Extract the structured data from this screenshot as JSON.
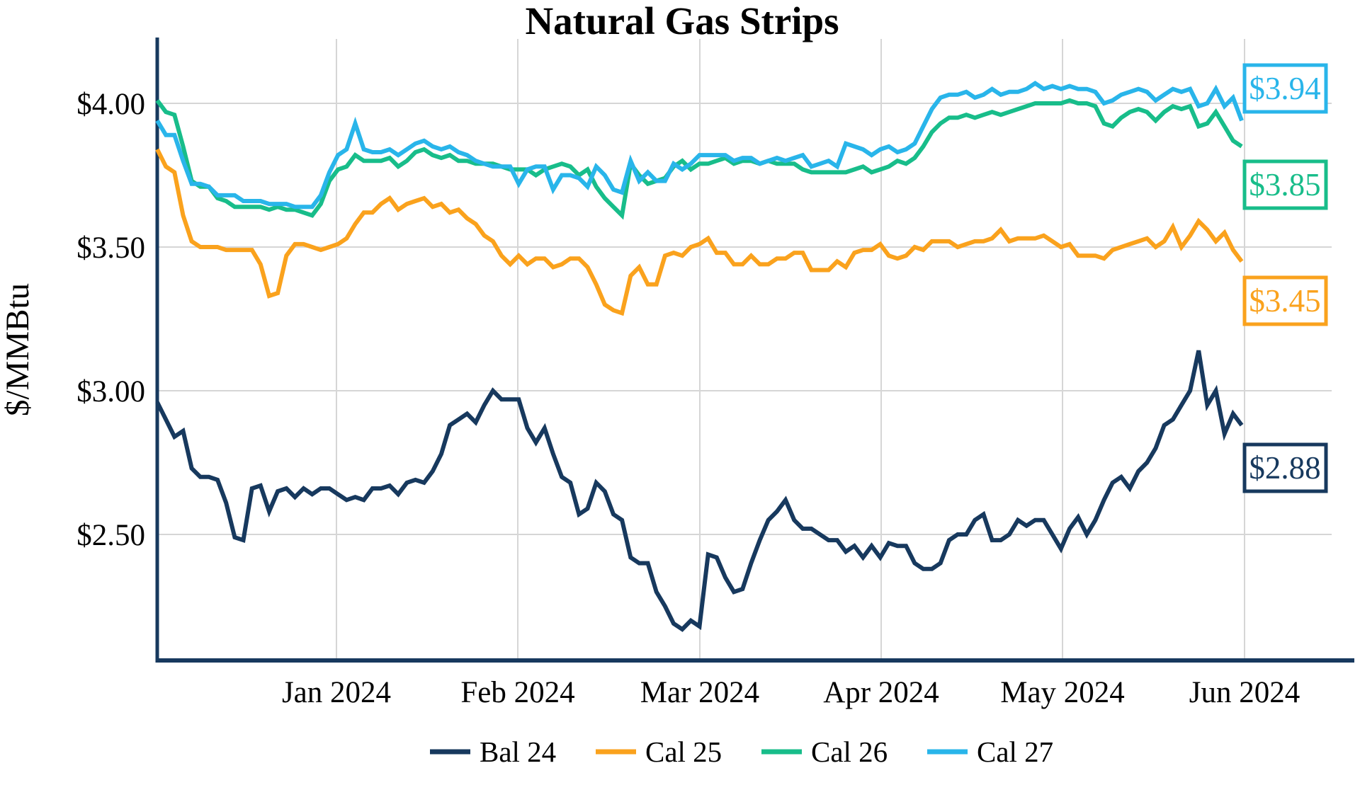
{
  "title": "Natural Gas Strips",
  "y_axis": {
    "label": "$/MMBtu",
    "ticks": [
      {
        "value": 4.0,
        "label": "$4.00"
      },
      {
        "value": 3.5,
        "label": "$3.50"
      },
      {
        "value": 3.0,
        "label": "$3.00"
      },
      {
        "value": 2.5,
        "label": "$2.50"
      }
    ]
  },
  "x_axis": {
    "ticks": [
      {
        "label": "Jan 2024",
        "pos": 20.82
      },
      {
        "label": "Feb 2024",
        "pos": 41.89
      },
      {
        "label": "Mar 2024",
        "pos": 63.04
      },
      {
        "label": "Apr 2024",
        "pos": 84.11
      },
      {
        "label": "May 2024",
        "pos": 105.18
      },
      {
        "label": "Jun 2024",
        "pos": 126.33
      }
    ]
  },
  "colors": {
    "bal24": "#17395E",
    "cal25": "#FAA21D",
    "cal26": "#18BD8A",
    "cal27": "#29B5EA",
    "grid": "#D6D6D6",
    "axis": "#17395E"
  },
  "chart_data": {
    "type": "line",
    "title": "Natural Gas Strips",
    "xlabel": "",
    "ylabel": "$/MMBtu",
    "ylim": [
      2.06,
      4.22
    ],
    "grid": true,
    "legend_position": "bottom",
    "x_range": "Dec 2023 through early Jun 2024, daily",
    "series": [
      {
        "name": "Bal 24",
        "color": "#17395E",
        "end_label": "$2.88",
        "values": [
          2.96,
          2.9,
          2.84,
          2.86,
          2.73,
          2.7,
          2.7,
          2.69,
          2.61,
          2.49,
          2.48,
          2.66,
          2.67,
          2.58,
          2.65,
          2.66,
          2.63,
          2.66,
          2.64,
          2.66,
          2.66,
          2.64,
          2.62,
          2.63,
          2.62,
          2.66,
          2.66,
          2.67,
          2.64,
          2.68,
          2.69,
          2.68,
          2.72,
          2.78,
          2.88,
          2.9,
          2.92,
          2.89,
          2.95,
          3.0,
          2.97,
          2.97,
          2.97,
          2.87,
          2.82,
          2.87,
          2.78,
          2.7,
          2.68,
          2.57,
          2.59,
          2.68,
          2.65,
          2.57,
          2.55,
          2.42,
          2.4,
          2.4,
          2.3,
          2.25,
          2.19,
          2.17,
          2.2,
          2.18,
          2.43,
          2.42,
          2.35,
          2.3,
          2.31,
          2.4,
          2.48,
          2.55,
          2.58,
          2.62,
          2.55,
          2.52,
          2.52,
          2.5,
          2.48,
          2.48,
          2.44,
          2.46,
          2.42,
          2.46,
          2.42,
          2.47,
          2.46,
          2.46,
          2.4,
          2.38,
          2.38,
          2.4,
          2.48,
          2.5,
          2.5,
          2.55,
          2.57,
          2.48,
          2.48,
          2.5,
          2.55,
          2.53,
          2.55,
          2.55,
          2.5,
          2.45,
          2.52,
          2.56,
          2.5,
          2.55,
          2.62,
          2.68,
          2.7,
          2.66,
          2.72,
          2.75,
          2.8,
          2.88,
          2.9,
          2.95,
          3.0,
          3.14,
          2.95,
          3.0,
          2.85,
          2.92,
          2.88
        ]
      },
      {
        "name": "Cal 25",
        "color": "#FAA21D",
        "end_label": "$3.45",
        "values": [
          3.84,
          3.78,
          3.76,
          3.61,
          3.52,
          3.5,
          3.5,
          3.5,
          3.49,
          3.49,
          3.49,
          3.49,
          3.44,
          3.33,
          3.34,
          3.47,
          3.51,
          3.51,
          3.5,
          3.49,
          3.5,
          3.51,
          3.53,
          3.58,
          3.62,
          3.62,
          3.65,
          3.67,
          3.63,
          3.65,
          3.66,
          3.67,
          3.64,
          3.65,
          3.62,
          3.63,
          3.6,
          3.58,
          3.54,
          3.52,
          3.47,
          3.44,
          3.47,
          3.44,
          3.46,
          3.46,
          3.43,
          3.44,
          3.46,
          3.46,
          3.43,
          3.37,
          3.3,
          3.28,
          3.27,
          3.4,
          3.43,
          3.37,
          3.37,
          3.47,
          3.48,
          3.47,
          3.5,
          3.51,
          3.53,
          3.48,
          3.48,
          3.44,
          3.44,
          3.47,
          3.44,
          3.44,
          3.46,
          3.46,
          3.48,
          3.48,
          3.42,
          3.42,
          3.42,
          3.45,
          3.43,
          3.48,
          3.49,
          3.49,
          3.51,
          3.47,
          3.46,
          3.47,
          3.5,
          3.49,
          3.52,
          3.52,
          3.52,
          3.5,
          3.51,
          3.52,
          3.52,
          3.53,
          3.56,
          3.52,
          3.53,
          3.53,
          3.53,
          3.54,
          3.52,
          3.5,
          3.51,
          3.47,
          3.47,
          3.47,
          3.46,
          3.49,
          3.5,
          3.51,
          3.52,
          3.53,
          3.5,
          3.52,
          3.57,
          3.5,
          3.54,
          3.59,
          3.56,
          3.52,
          3.55,
          3.49,
          3.45
        ]
      },
      {
        "name": "Cal 26",
        "color": "#18BD8A",
        "end_label": "$3.85",
        "values": [
          4.01,
          3.97,
          3.96,
          3.85,
          3.73,
          3.71,
          3.71,
          3.67,
          3.66,
          3.64,
          3.64,
          3.64,
          3.64,
          3.63,
          3.64,
          3.63,
          3.63,
          3.62,
          3.61,
          3.65,
          3.73,
          3.77,
          3.78,
          3.82,
          3.8,
          3.8,
          3.8,
          3.81,
          3.78,
          3.8,
          3.83,
          3.84,
          3.82,
          3.81,
          3.82,
          3.8,
          3.8,
          3.79,
          3.79,
          3.79,
          3.78,
          3.77,
          3.77,
          3.77,
          3.75,
          3.77,
          3.78,
          3.79,
          3.78,
          3.75,
          3.77,
          3.71,
          3.67,
          3.64,
          3.61,
          3.79,
          3.75,
          3.72,
          3.73,
          3.74,
          3.78,
          3.8,
          3.77,
          3.79,
          3.79,
          3.8,
          3.81,
          3.79,
          3.8,
          3.8,
          3.79,
          3.8,
          3.79,
          3.79,
          3.79,
          3.77,
          3.76,
          3.76,
          3.76,
          3.76,
          3.76,
          3.77,
          3.78,
          3.76,
          3.77,
          3.78,
          3.8,
          3.79,
          3.81,
          3.85,
          3.9,
          3.93,
          3.95,
          3.95,
          3.96,
          3.95,
          3.96,
          3.97,
          3.96,
          3.97,
          3.98,
          3.99,
          4.0,
          4.0,
          4.0,
          4.0,
          4.01,
          4.0,
          4.0,
          3.99,
          3.93,
          3.92,
          3.95,
          3.97,
          3.98,
          3.97,
          3.94,
          3.97,
          3.99,
          3.98,
          3.99,
          3.92,
          3.93,
          3.97,
          3.92,
          3.87,
          3.85
        ]
      },
      {
        "name": "Cal 27",
        "color": "#29B5EA",
        "end_label": "$3.94",
        "values": [
          3.94,
          3.89,
          3.89,
          3.8,
          3.72,
          3.72,
          3.71,
          3.68,
          3.68,
          3.68,
          3.66,
          3.66,
          3.66,
          3.65,
          3.65,
          3.65,
          3.64,
          3.64,
          3.64,
          3.68,
          3.76,
          3.82,
          3.84,
          3.93,
          3.84,
          3.83,
          3.83,
          3.84,
          3.82,
          3.84,
          3.86,
          3.87,
          3.85,
          3.84,
          3.85,
          3.83,
          3.82,
          3.8,
          3.79,
          3.78,
          3.78,
          3.78,
          3.72,
          3.77,
          3.78,
          3.78,
          3.7,
          3.75,
          3.75,
          3.74,
          3.71,
          3.78,
          3.75,
          3.7,
          3.69,
          3.8,
          3.73,
          3.76,
          3.73,
          3.73,
          3.79,
          3.77,
          3.79,
          3.82,
          3.82,
          3.82,
          3.82,
          3.8,
          3.81,
          3.81,
          3.79,
          3.8,
          3.81,
          3.8,
          3.81,
          3.82,
          3.78,
          3.79,
          3.8,
          3.78,
          3.86,
          3.85,
          3.84,
          3.82,
          3.84,
          3.85,
          3.83,
          3.84,
          3.86,
          3.92,
          3.98,
          4.02,
          4.03,
          4.03,
          4.04,
          4.02,
          4.03,
          4.05,
          4.03,
          4.04,
          4.04,
          4.05,
          4.07,
          4.05,
          4.06,
          4.05,
          4.06,
          4.05,
          4.05,
          4.04,
          4.0,
          4.01,
          4.03,
          4.04,
          4.05,
          4.04,
          4.01,
          4.03,
          4.05,
          4.04,
          4.05,
          3.99,
          4.0,
          4.05,
          3.99,
          4.02,
          3.94
        ]
      }
    ]
  },
  "legend": {
    "items": [
      "Bal 24",
      "Cal 25",
      "Cal 26",
      "Cal 27"
    ]
  }
}
